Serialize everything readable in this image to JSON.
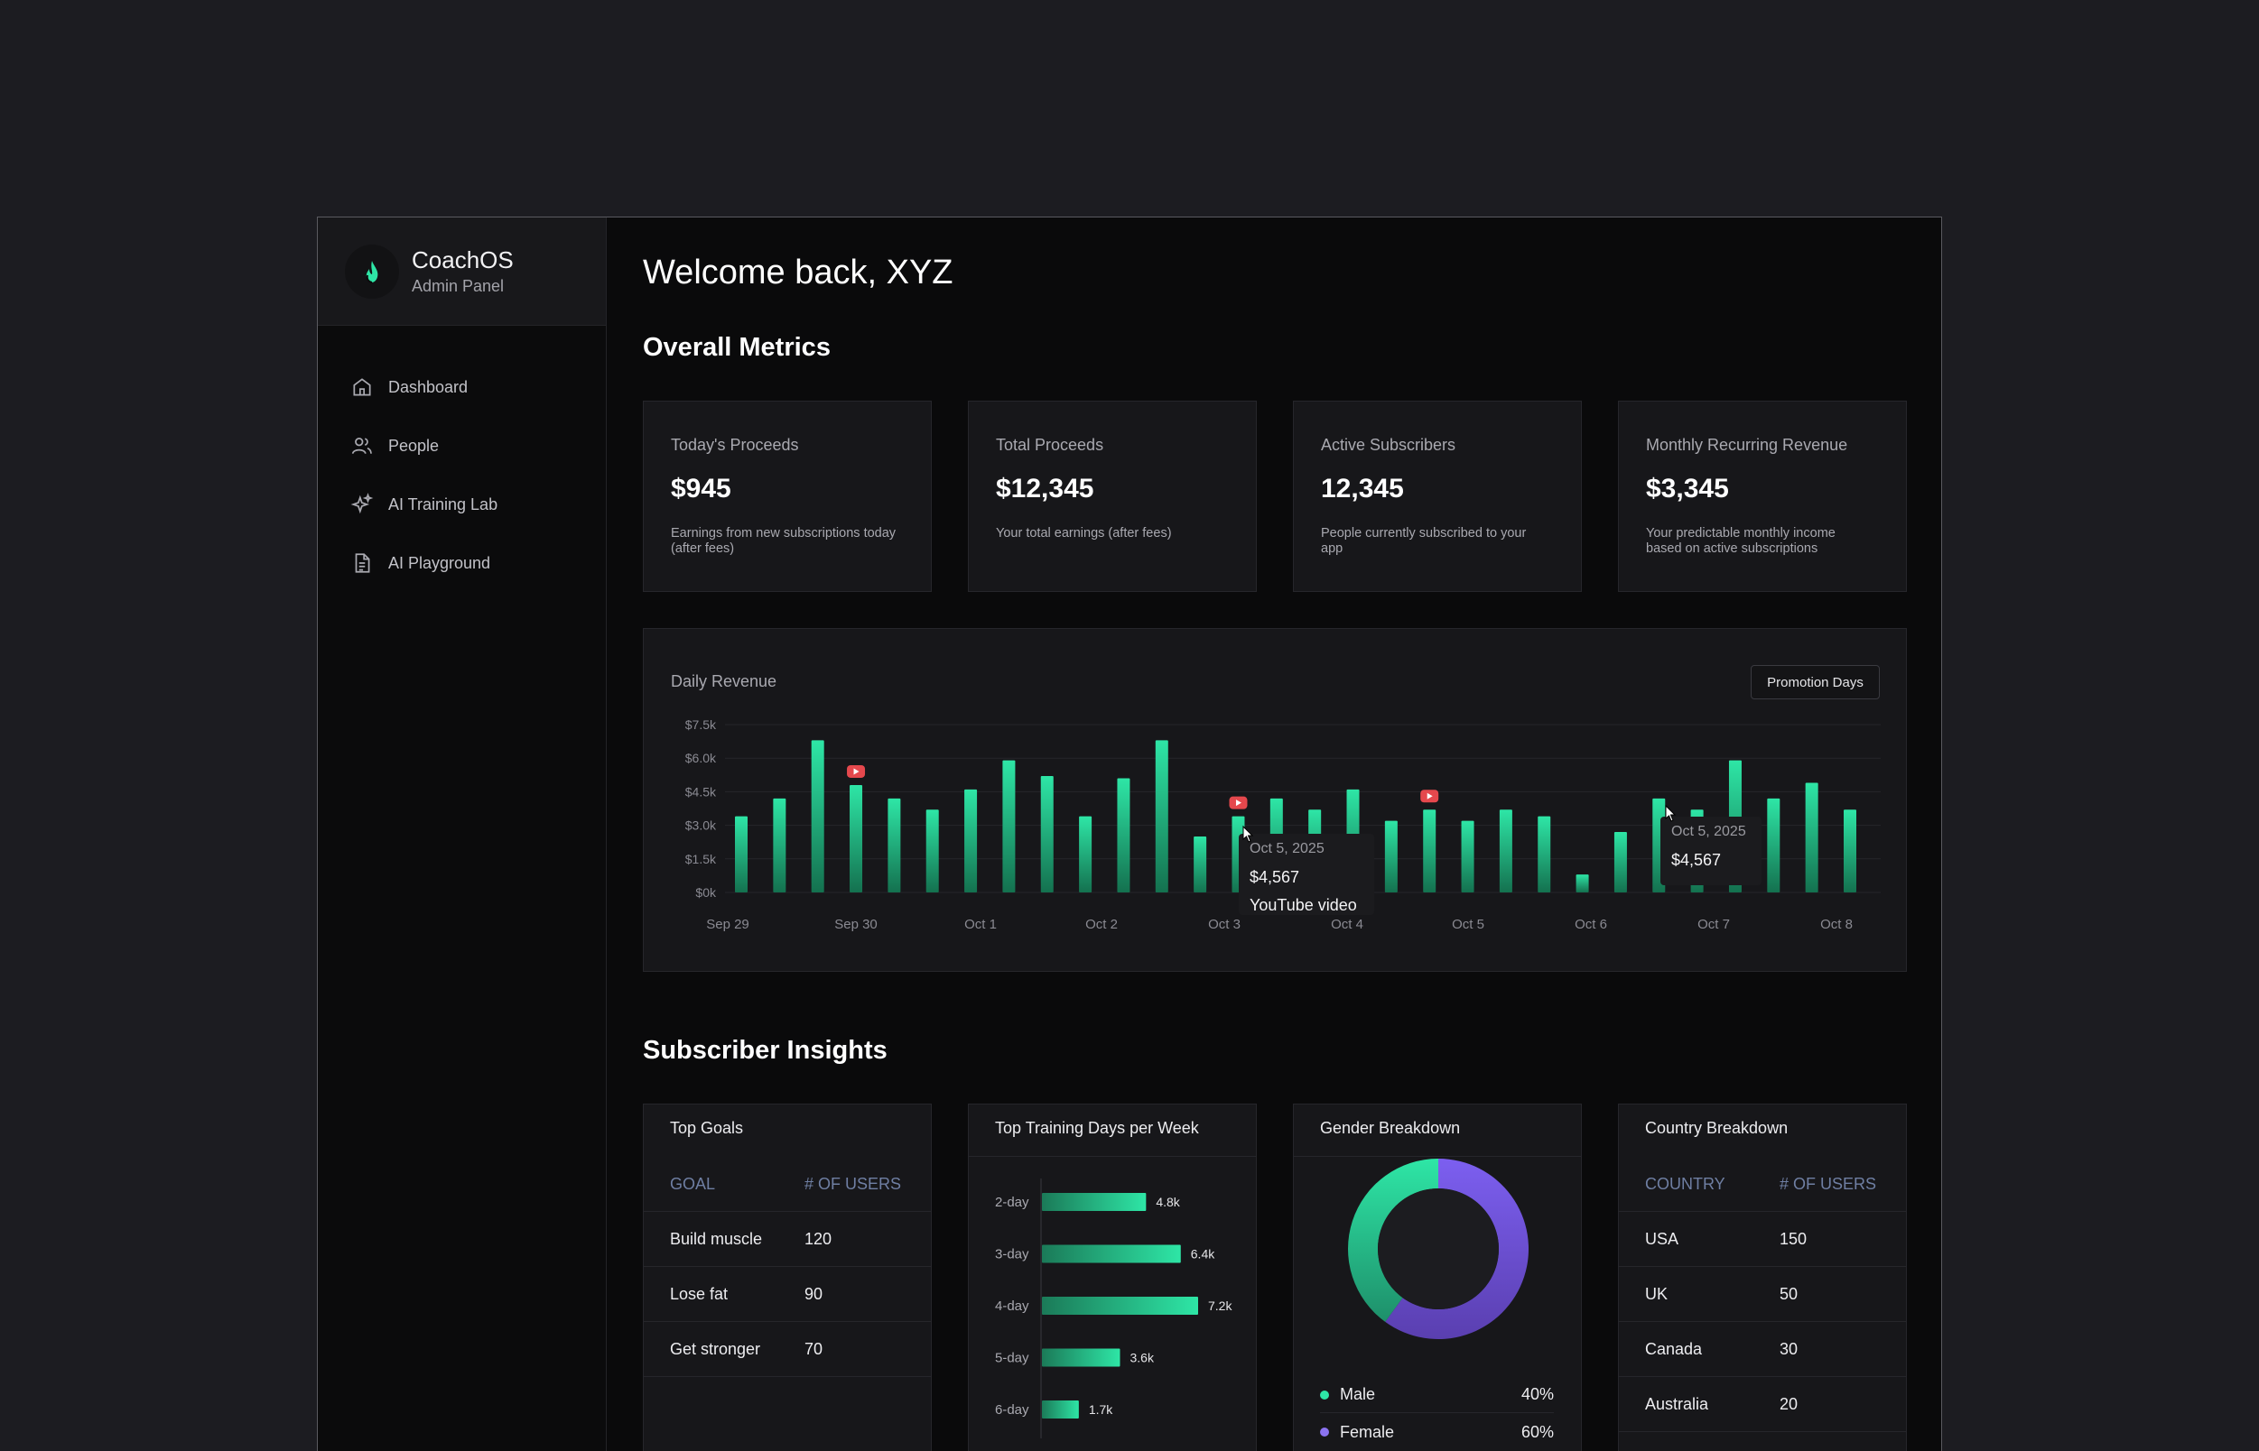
{
  "brand": {
    "title": "CoachOS",
    "subtitle": "Admin Panel"
  },
  "nav": [
    {
      "label": "Dashboard",
      "icon": "home-icon"
    },
    {
      "label": "People",
      "icon": "users-icon"
    },
    {
      "label": "AI Training Lab",
      "icon": "sparkles-icon"
    },
    {
      "label": "AI Playground",
      "icon": "document-icon"
    }
  ],
  "welcome": "Welcome back, XYZ",
  "sections": {
    "metrics": "Overall Metrics",
    "insights": "Subscriber Insights"
  },
  "metrics": [
    {
      "label": "Today's Proceeds",
      "value": "$945",
      "desc": "Earnings from new subscriptions today (after fees)"
    },
    {
      "label": "Total Proceeds",
      "value": "$12,345",
      "desc": "Your total earnings (after fees)"
    },
    {
      "label": "Active Subscribers",
      "value": "12,345",
      "desc": "People currently subscribed to your app"
    },
    {
      "label": "Monthly Recurring Revenue",
      "value": "$3,345",
      "desc": "Your predictable monthly income based on active subscriptions"
    }
  ],
  "revenue": {
    "title": "Daily Revenue",
    "promo_button": "Promotion Days",
    "tooltips": [
      {
        "date": "Oct 5, 2025",
        "value": "$4,567",
        "note": "YouTube video"
      },
      {
        "date": "Oct 5, 2025",
        "value": "$4,567"
      }
    ]
  },
  "colors": {
    "accent": "#2ee6a6",
    "accent_dark": "#14714f",
    "promo": "#e5484d",
    "female": "#7b5ee0"
  },
  "chart_data": [
    {
      "type": "bar",
      "title": "Daily Revenue",
      "ylim": [
        0,
        7500
      ],
      "y_ticks": [
        "$0k",
        "$1.5k",
        "$3.0k",
        "$4.5k",
        "$6.0k",
        "$7.5k"
      ],
      "x_ticks": [
        "Sep 29",
        "Sep 30",
        "Oct 1",
        "Oct 2",
        "Oct 3",
        "Oct 4",
        "Oct 5",
        "Oct 6",
        "Oct 7",
        "Oct 8"
      ],
      "values": [
        3400,
        4200,
        6800,
        4800,
        4200,
        3700,
        4600,
        5900,
        5200,
        3400,
        5100,
        6800,
        2500,
        3400,
        4200,
        3700,
        4600,
        3200,
        3700,
        3200,
        3700,
        3400,
        800,
        2700,
        4200,
        3700,
        5900,
        4200,
        4900,
        3700
      ],
      "promotion_bar_indices": [
        3,
        13,
        18
      ],
      "grid": true
    },
    {
      "type": "bar",
      "orientation": "horizontal",
      "title": "Top Training Days per Week",
      "categories": [
        "2-day",
        "3-day",
        "4-day",
        "5-day",
        "6-day"
      ],
      "values": [
        4800,
        6400,
        7200,
        3600,
        1700
      ],
      "data_labels": [
        "4.8k",
        "6.4k",
        "7.2k",
        "3.6k",
        "1.7k"
      ]
    },
    {
      "type": "pie",
      "title": "Gender Breakdown",
      "donut": true,
      "categories": [
        "Male",
        "Female"
      ],
      "values": [
        40,
        60
      ],
      "labels": [
        "40%",
        "60%"
      ]
    }
  ],
  "top_goals": {
    "title": "Top Goals",
    "headers": [
      "GOAL",
      "# OF USERS"
    ],
    "rows": [
      [
        "Build muscle",
        "120"
      ],
      [
        "Lose fat",
        "90"
      ],
      [
        "Get stronger",
        "70"
      ]
    ]
  },
  "country": {
    "title": "Country Breakdown",
    "headers": [
      "COUNTRY",
      "# OF USERS"
    ],
    "rows": [
      [
        "USA",
        "150"
      ],
      [
        "UK",
        "50"
      ],
      [
        "Canada",
        "30"
      ],
      [
        "Australia",
        "20"
      ]
    ]
  }
}
